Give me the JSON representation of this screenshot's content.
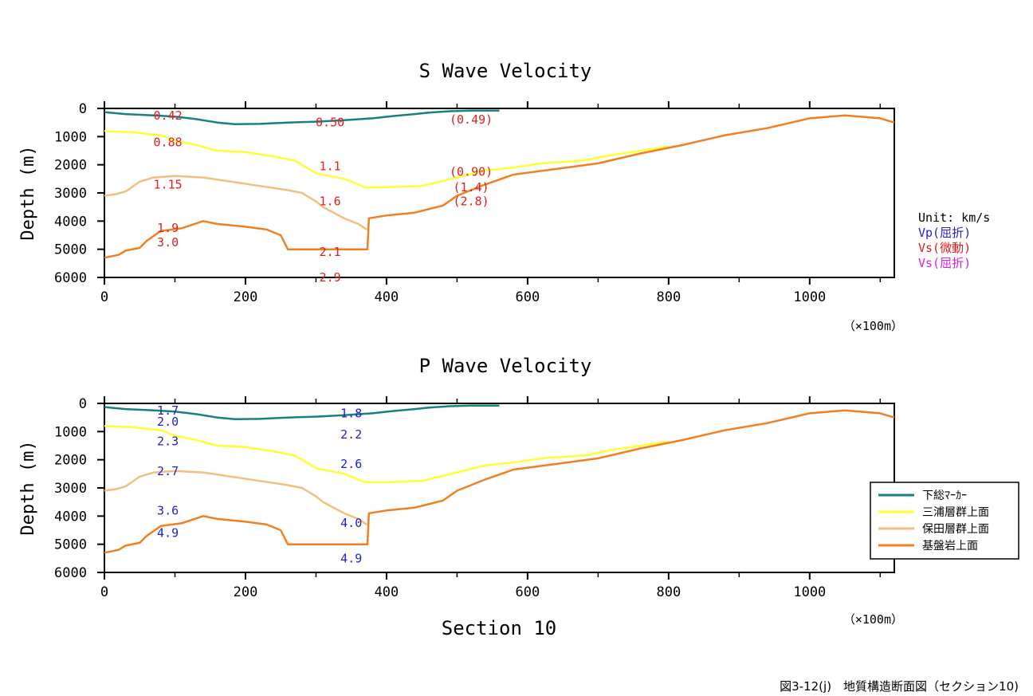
{
  "figure": {
    "caption": "図3-12(j)　地質構造断面図（セクション10)",
    "xlabel": "Section 10",
    "unit_note": {
      "unit": "Unit: km/s",
      "vp_refraction": "Vp(屈折)",
      "vs_microtremor": "Vs(微動)",
      "vs_refraction": "Vs(屈折)"
    },
    "colors": {
      "vp_text": "#1f1fcc",
      "vs_micro_text": "#e02020",
      "vs_refr_text": "#e020e0"
    },
    "legend": [
      {
        "name": "下総ﾏｰｶｰ",
        "color": "#1a8080"
      },
      {
        "name": "三浦層群上面",
        "color": "#ffff33"
      },
      {
        "name": "保田層群上面",
        "color": "#f0c080"
      },
      {
        "name": "基盤岩上面",
        "color": "#f08020"
      }
    ]
  },
  "chart_data": [
    {
      "type": "line",
      "title": "S Wave Velocity",
      "xlabel": "",
      "ylabel": "Depth (m)",
      "xlim": [
        0,
        1120
      ],
      "ylim": [
        0,
        6000
      ],
      "y_inverted": true,
      "x_unit_note": "（×100m）",
      "xticks": [
        "0",
        "200",
        "400",
        "600",
        "800",
        "1000"
      ],
      "yticks": [
        "0",
        "1000",
        "2000",
        "3000",
        "4000",
        "5000",
        "6000"
      ],
      "series": [
        {
          "name": "下総ﾏｰｶｰ",
          "color": "#1a8080",
          "x": [
            0,
            30,
            70,
            100,
            130,
            160,
            185,
            220,
            260,
            300,
            340,
            380,
            410,
            440,
            460,
            490,
            520,
            560
          ],
          "y": [
            130,
            200,
            250,
            290,
            380,
            500,
            560,
            550,
            500,
            470,
            420,
            350,
            270,
            200,
            150,
            100,
            80,
            80
          ]
        },
        {
          "name": "三浦層群上面",
          "color": "#ffff33",
          "x": [
            0,
            40,
            80,
            100,
            130,
            160,
            200,
            240,
            270,
            300,
            340,
            370,
            400,
            450,
            500,
            540,
            580,
            620,
            680,
            720,
            760,
            800
          ],
          "y": [
            800,
            850,
            950,
            1150,
            1300,
            1500,
            1550,
            1700,
            1850,
            2300,
            2500,
            2800,
            2800,
            2750,
            2450,
            2200,
            2100,
            1950,
            1850,
            1650,
            1500,
            1350
          ]
        },
        {
          "name": "保田層群上面",
          "color": "#f0c080",
          "x": [
            0,
            15,
            30,
            50,
            70,
            100,
            140,
            180,
            220,
            260,
            280,
            300,
            310,
            340,
            360,
            372
          ],
          "y": [
            3100,
            3050,
            2950,
            2600,
            2450,
            2400,
            2450,
            2600,
            2750,
            2900,
            3000,
            3300,
            3500,
            3900,
            4100,
            4300
          ]
        },
        {
          "name": "基盤岩上面",
          "color": "#f08020",
          "x": [
            0,
            20,
            30,
            50,
            60,
            80,
            110,
            140,
            160,
            200,
            230,
            250,
            260,
            373,
            375,
            400,
            440,
            480,
            500,
            540,
            580,
            640,
            700,
            760,
            820,
            880,
            940,
            1000,
            1050,
            1100,
            1120
          ],
          "y": [
            5300,
            5200,
            5050,
            4950,
            4700,
            4350,
            4250,
            4000,
            4100,
            4200,
            4300,
            4500,
            5000,
            5000,
            3900,
            3800,
            3700,
            3450,
            3100,
            2700,
            2350,
            2150,
            1950,
            1600,
            1300,
            950,
            700,
            350,
            250,
            350,
            500
          ]
        }
      ],
      "annotations": [
        {
          "text": "0.42",
          "x": 90,
          "y": 250,
          "kind": "vs_micro"
        },
        {
          "text": "0.50",
          "x": 320,
          "y": 500,
          "kind": "vs_micro"
        },
        {
          "text": "(0.49)",
          "x": 520,
          "y": 400,
          "kind": "vs_micro"
        },
        {
          "text": "0.88",
          "x": 90,
          "y": 1200,
          "kind": "vs_micro"
        },
        {
          "text": "1.1",
          "x": 320,
          "y": 2050,
          "kind": "vs_micro"
        },
        {
          "text": "(0.90)",
          "x": 520,
          "y": 2250,
          "kind": "vs_micro"
        },
        {
          "text": "1.15",
          "x": 90,
          "y": 2700,
          "kind": "vs_micro"
        },
        {
          "text": "(1.4)",
          "x": 520,
          "y": 2800,
          "kind": "vs_micro"
        },
        {
          "text": "1.6",
          "x": 320,
          "y": 3300,
          "kind": "vs_micro"
        },
        {
          "text": "(2.8)",
          "x": 520,
          "y": 3300,
          "kind": "vs_micro"
        },
        {
          "text": "1.9",
          "x": 90,
          "y": 4250,
          "kind": "vs_micro"
        },
        {
          "text": "3.0",
          "x": 90,
          "y": 4750,
          "kind": "vs_micro"
        },
        {
          "text": "2.1",
          "x": 320,
          "y": 5100,
          "kind": "vs_micro"
        },
        {
          "text": "2.9",
          "x": 320,
          "y": 6000,
          "kind": "vs_micro"
        }
      ]
    },
    {
      "type": "line",
      "title": "P Wave Velocity",
      "xlabel": "Section 10",
      "ylabel": "Depth (m)",
      "xlim": [
        0,
        1120
      ],
      "ylim": [
        0,
        6000
      ],
      "y_inverted": true,
      "x_unit_note": "（×100m）",
      "xticks": [
        "0",
        "200",
        "400",
        "600",
        "800",
        "1000"
      ],
      "yticks": [
        "0",
        "1000",
        "2000",
        "3000",
        "4000",
        "5000",
        "6000"
      ],
      "series": [
        {
          "name": "下総ﾏｰｶｰ",
          "color": "#1a8080",
          "x": [
            0,
            30,
            70,
            100,
            130,
            160,
            185,
            220,
            260,
            300,
            340,
            380,
            410,
            440,
            460,
            490,
            520,
            560
          ],
          "y": [
            130,
            200,
            250,
            290,
            380,
            500,
            560,
            550,
            500,
            470,
            420,
            350,
            270,
            200,
            150,
            100,
            80,
            80
          ]
        },
        {
          "name": "三浦層群上面",
          "color": "#ffff33",
          "x": [
            0,
            40,
            80,
            100,
            130,
            160,
            200,
            240,
            270,
            300,
            340,
            370,
            400,
            450,
            500,
            540,
            580,
            620,
            680,
            720,
            760,
            800
          ],
          "y": [
            800,
            850,
            950,
            1150,
            1300,
            1500,
            1550,
            1700,
            1850,
            2300,
            2500,
            2800,
            2800,
            2750,
            2450,
            2200,
            2100,
            1950,
            1850,
            1650,
            1500,
            1350
          ]
        },
        {
          "name": "保田層群上面",
          "color": "#f0c080",
          "x": [
            0,
            15,
            30,
            50,
            70,
            100,
            140,
            180,
            220,
            260,
            280,
            300,
            310,
            340,
            360,
            372
          ],
          "y": [
            3100,
            3050,
            2950,
            2600,
            2450,
            2400,
            2450,
            2600,
            2750,
            2900,
            3000,
            3300,
            3500,
            3900,
            4100,
            4300
          ]
        },
        {
          "name": "基盤岩上面",
          "color": "#f08020",
          "x": [
            0,
            20,
            30,
            50,
            60,
            80,
            110,
            140,
            160,
            200,
            230,
            250,
            260,
            373,
            375,
            400,
            440,
            480,
            500,
            540,
            580,
            640,
            700,
            760,
            820,
            880,
            940,
            1000,
            1050,
            1100,
            1120
          ],
          "y": [
            5300,
            5200,
            5050,
            4950,
            4700,
            4350,
            4250,
            4000,
            4100,
            4200,
            4300,
            4500,
            5000,
            5000,
            3900,
            3800,
            3700,
            3450,
            3100,
            2700,
            2350,
            2150,
            1950,
            1600,
            1300,
            950,
            700,
            350,
            250,
            350,
            500
          ]
        }
      ],
      "annotations": [
        {
          "text": "1.7",
          "x": 90,
          "y": 250,
          "kind": "vp"
        },
        {
          "text": "2.0",
          "x": 90,
          "y": 650,
          "kind": "vp"
        },
        {
          "text": "1.8",
          "x": 350,
          "y": 350,
          "kind": "vp"
        },
        {
          "text": "2.2",
          "x": 350,
          "y": 1100,
          "kind": "vp"
        },
        {
          "text": "2.3",
          "x": 90,
          "y": 1350,
          "kind": "vp"
        },
        {
          "text": "2.6",
          "x": 350,
          "y": 2150,
          "kind": "vp"
        },
        {
          "text": "2.7",
          "x": 90,
          "y": 2400,
          "kind": "vp"
        },
        {
          "text": "3.6",
          "x": 90,
          "y": 3800,
          "kind": "vp"
        },
        {
          "text": "4.0",
          "x": 350,
          "y": 4250,
          "kind": "vp"
        },
        {
          "text": "4.9",
          "x": 90,
          "y": 4600,
          "kind": "vp"
        },
        {
          "text": "4.9",
          "x": 350,
          "y": 5500,
          "kind": "vp"
        }
      ]
    }
  ]
}
